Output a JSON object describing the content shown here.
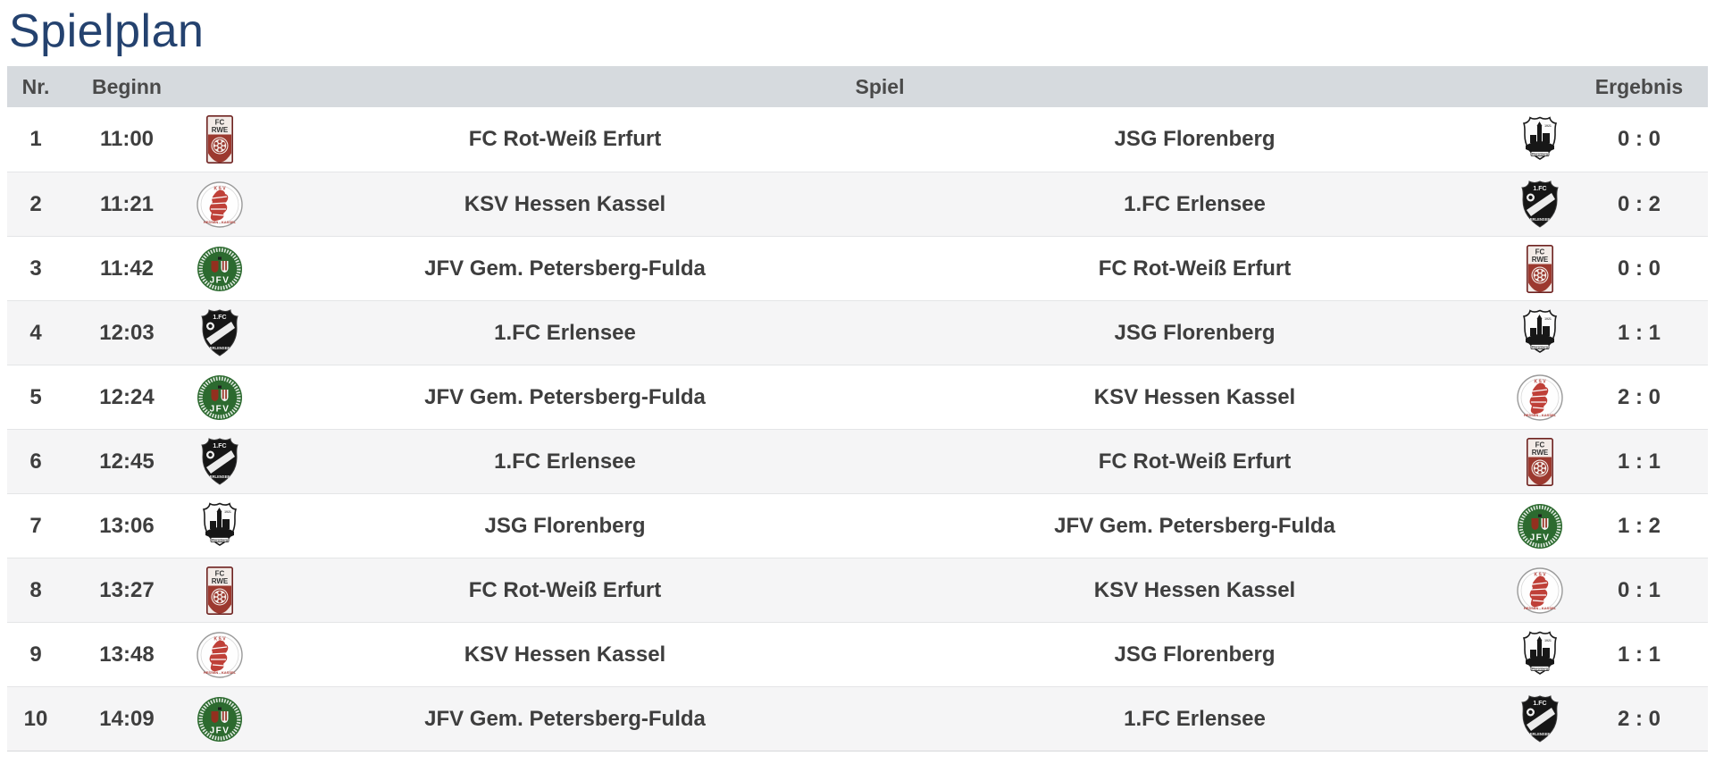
{
  "page": {
    "title": "Spielplan"
  },
  "table": {
    "headers": {
      "nr": "Nr.",
      "beginn": "Beginn",
      "spiel": "Spiel",
      "ergebnis": "Ergebnis"
    },
    "teams": {
      "rwe": {
        "name": "FC Rot-Weiß Erfurt",
        "logo_icon": "fc-rot-weiss-erfurt-crest"
      },
      "ksv": {
        "name": "KSV Hessen Kassel",
        "logo_icon": "ksv-hessen-kassel-crest"
      },
      "jfv": {
        "name": "JFV Gem. Petersberg-Fulda",
        "logo_icon": "jfv-petersberg-fulda-crest"
      },
      "erlensee": {
        "name": "1.FC Erlensee",
        "logo_icon": "fc-erlensee-crest"
      },
      "florenberg": {
        "name": "JSG Florenberg",
        "logo_icon": "jsg-florenberg-crest"
      }
    },
    "rows": [
      {
        "nr": "1",
        "time": "11:00",
        "home": "rwe",
        "away": "florenberg",
        "score": "0 : 0"
      },
      {
        "nr": "2",
        "time": "11:21",
        "home": "ksv",
        "away": "erlensee",
        "score": "0 : 2"
      },
      {
        "nr": "3",
        "time": "11:42",
        "home": "jfv",
        "away": "rwe",
        "score": "0 : 0"
      },
      {
        "nr": "4",
        "time": "12:03",
        "home": "erlensee",
        "away": "florenberg",
        "score": "1 : 1"
      },
      {
        "nr": "5",
        "time": "12:24",
        "home": "jfv",
        "away": "ksv",
        "score": "2 : 0"
      },
      {
        "nr": "6",
        "time": "12:45",
        "home": "erlensee",
        "away": "rwe",
        "score": "1 : 1"
      },
      {
        "nr": "7",
        "time": "13:06",
        "home": "florenberg",
        "away": "jfv",
        "score": "1 : 2"
      },
      {
        "nr": "8",
        "time": "13:27",
        "home": "rwe",
        "away": "ksv",
        "score": "0 : 1"
      },
      {
        "nr": "9",
        "time": "13:48",
        "home": "ksv",
        "away": "florenberg",
        "score": "1 : 1"
      },
      {
        "nr": "10",
        "time": "14:09",
        "home": "jfv",
        "away": "erlensee",
        "score": "2 : 0"
      }
    ]
  },
  "colors": {
    "title": "#24426f",
    "header_bg": "#d6dade",
    "header_text": "#4a4a4a",
    "row_text": "#3e3e3e",
    "row_alt_bg": "#f5f5f6",
    "row_divider": "#e4e5e7",
    "crest_red": "#9c392f",
    "crest_green": "#2c6a2f",
    "crest_black": "#161616"
  }
}
